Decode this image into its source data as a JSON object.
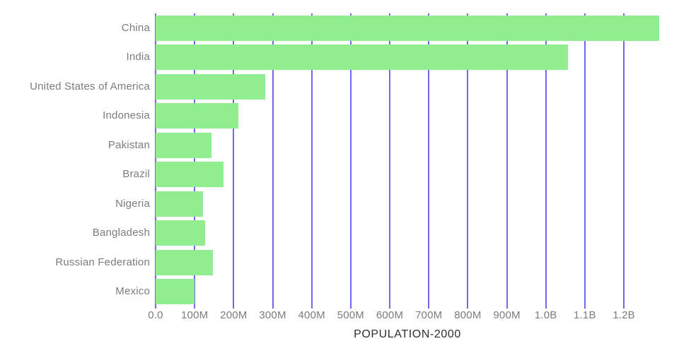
{
  "chart_data": {
    "type": "bar",
    "orientation": "horizontal",
    "title": "",
    "xlabel": "POPULATION-2000",
    "ylabel": "",
    "unit": "people",
    "categories": [
      "China",
      "India",
      "United States of America",
      "Indonesia",
      "Pakistan",
      "Brazil",
      "Nigeria",
      "Bangladesh",
      "Russian Federation",
      "Mexico"
    ],
    "values": [
      1290550765,
      1056575549,
      281710909,
      211513823,
      142343578,
      174790340,
      122283850,
      127657854,
      146404903,
      98899845
    ],
    "values_label_hint": [
      "1.29B",
      "1.06B",
      "282M",
      "212M",
      "142M",
      "175M",
      "122M",
      "128M",
      "146M",
      "99M"
    ],
    "xlim": [
      0,
      1290550765
    ],
    "xticks": [
      {
        "value": 0,
        "label": "0.0"
      },
      {
        "value": 100000000,
        "label": "100M"
      },
      {
        "value": 200000000,
        "label": "200M"
      },
      {
        "value": 300000000,
        "label": "300M"
      },
      {
        "value": 400000000,
        "label": "400M"
      },
      {
        "value": 500000000,
        "label": "500M"
      },
      {
        "value": 600000000,
        "label": "600M"
      },
      {
        "value": 700000000,
        "label": "700M"
      },
      {
        "value": 800000000,
        "label": "800M"
      },
      {
        "value": 900000000,
        "label": "900M"
      },
      {
        "value": 1000000000,
        "label": "1.0B"
      },
      {
        "value": 1100000000,
        "label": "1.1B"
      },
      {
        "value": 1200000000,
        "label": "1.2B"
      }
    ],
    "grid": "vertical",
    "legend": "none",
    "colors": {
      "bar": "#90EE90",
      "gridline": "#706AEF",
      "axis_text": "#7B7B83",
      "title_text": "#2E2E2E",
      "background": "#FFFFFF"
    }
  }
}
